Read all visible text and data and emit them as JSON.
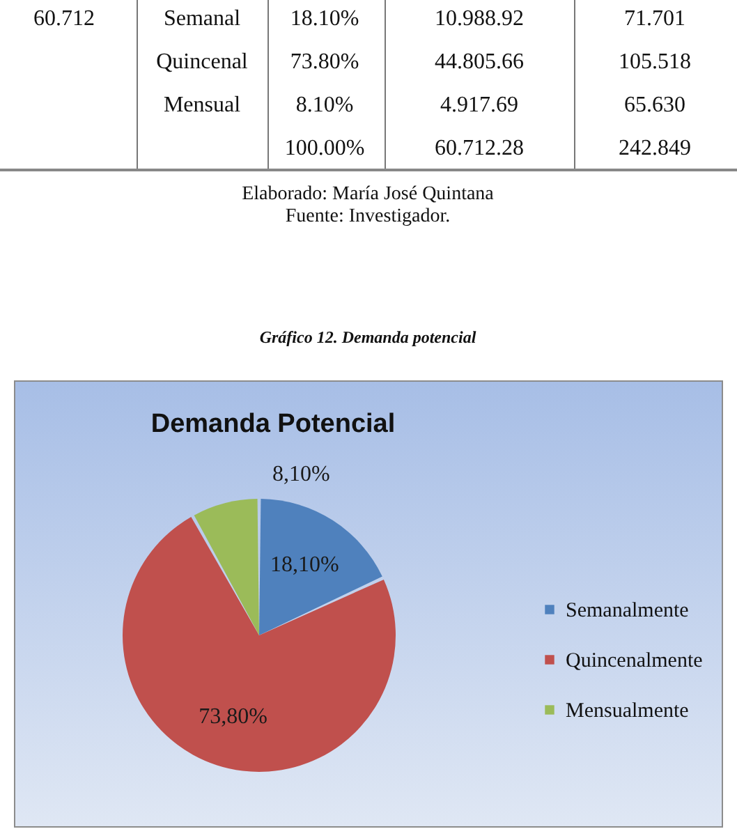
{
  "chart_data": [
    {
      "type": "other",
      "annotations": [
        "60.712",
        "Semanal",
        "18.10%",
        "10.988.92",
        "71.701",
        "Quincenal",
        "73.80%",
        "44.805.66",
        "105.518",
        "Mensual",
        "8.10%",
        "4.917.69",
        "65.630",
        "100.00%",
        "60.712.28",
        "242.849",
        "Elaborado: María José Quintana",
        "Fuente: Investigador."
      ]
    },
    {
      "type": "pie",
      "title": "Demanda Potencial",
      "categories": [
        "Semanalmente",
        "Quincenalmente",
        "Mensualmente"
      ],
      "values": [
        18.1,
        73.8,
        8.1
      ],
      "colors": [
        "#4f81bd",
        "#c0504d",
        "#9bbb59"
      ],
      "value_labels": [
        "18,10%",
        "73,80%",
        "8,10%"
      ],
      "legend": "right",
      "annotations": [
        "Gráfico 12. Demanda potencial"
      ]
    }
  ]
}
